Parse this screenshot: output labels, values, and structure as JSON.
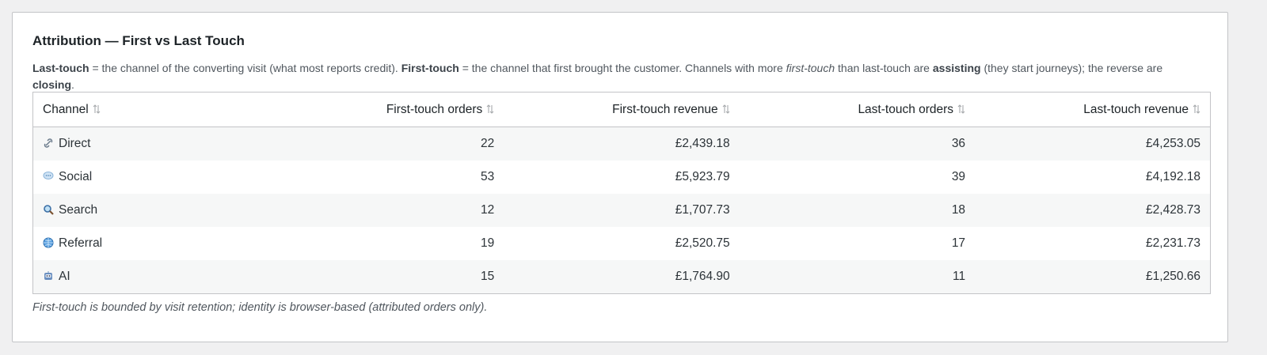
{
  "title": "Attribution — First vs Last Touch",
  "description": [
    "Last-touch",
    " = the channel of the converting visit (what most reports credit). ",
    "First-touch",
    " = the channel that first brought the customer. Channels with more ",
    "first-touch",
    " than last-touch are ",
    "assisting",
    " (they start journeys); the reverse are ",
    "closing",
    "."
  ],
  "table": {
    "columns": [
      "Channel",
      "First-touch orders",
      "First-touch revenue",
      "Last-touch orders",
      "Last-touch revenue"
    ],
    "rows": [
      [
        "Direct",
        "22",
        "£2,439.18",
        "36",
        "£4,253.05"
      ],
      [
        "Social",
        "53",
        "£5,923.79",
        "39",
        "£4,192.18"
      ],
      [
        "Search",
        "12",
        "£1,707.73",
        "18",
        "£2,428.73"
      ],
      [
        "Referral",
        "19",
        "£2,520.75",
        "17",
        "£2,231.73"
      ],
      [
        "AI",
        "15",
        "£1,764.90",
        "11",
        "£1,250.66"
      ]
    ]
  },
  "footnote": "First-touch is bounded by visit retention; identity is browser-based (attributed orders only)."
}
